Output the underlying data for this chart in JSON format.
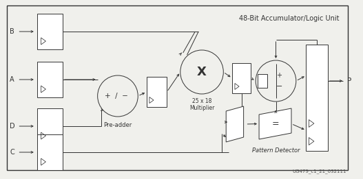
{
  "bg_color": "#f0f0ec",
  "line_color": "#333333",
  "title": "48-Bit Accumulator/Logic Unit",
  "caption": "UG479_c1_21_032111",
  "inputs": [
    "B",
    "A",
    "D",
    "C"
  ],
  "output_label": "P",
  "pre_adder_label": "Pre-adder",
  "multiplier_label": "25 x 18\nMultiplier",
  "pattern_detector_label": "Pattern Detector"
}
